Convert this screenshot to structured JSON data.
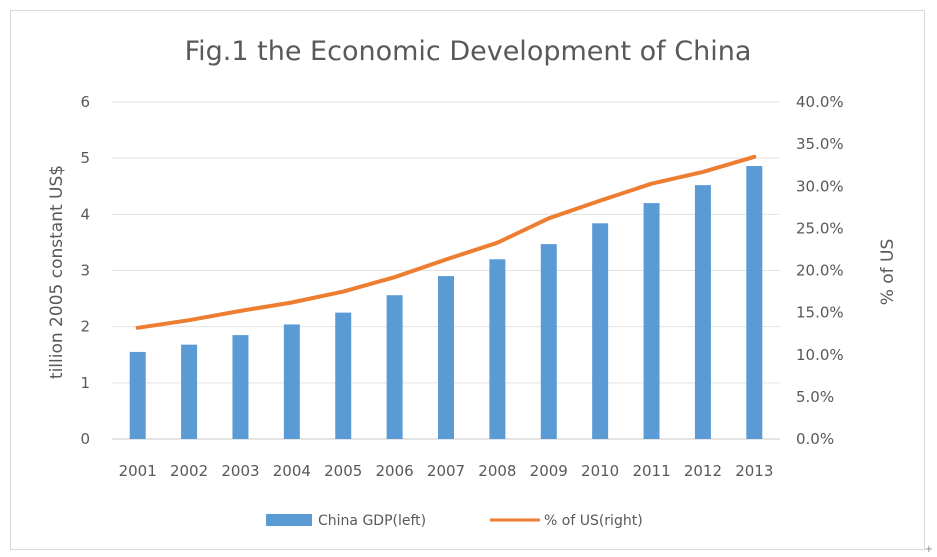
{
  "chart_data": {
    "type": "bar",
    "title": "Fig.1 the Economic Development of China",
    "ylabel_left": "tillion 2005 constant US$",
    "ylabel_right": "% of US",
    "categories": [
      "2001",
      "2002",
      "2003",
      "2004",
      "2005",
      "2006",
      "2007",
      "2008",
      "2009",
      "2010",
      "2011",
      "2012",
      "2013"
    ],
    "series": [
      {
        "name": "China GDP(left)",
        "type": "bar",
        "axis": "left",
        "color": "#5B9BD5",
        "values": [
          1.55,
          1.68,
          1.85,
          2.04,
          2.25,
          2.56,
          2.9,
          3.2,
          3.47,
          3.84,
          4.2,
          4.52,
          4.86
        ]
      },
      {
        "name": "% of US(right)",
        "type": "line",
        "axis": "right",
        "color": "#ED7D31",
        "values": [
          13.2,
          14.1,
          15.2,
          16.2,
          17.5,
          19.2,
          21.3,
          23.3,
          26.2,
          28.3,
          30.3,
          31.7,
          33.5
        ]
      }
    ],
    "ylim_left": [
      0,
      6
    ],
    "yticks_left": [
      "0",
      "1",
      "2",
      "3",
      "4",
      "5",
      "6"
    ],
    "ylim_right": [
      0,
      40
    ],
    "yticks_right": [
      "0.0%",
      "5.0%",
      "10.0%",
      "15.0%",
      "20.0%",
      "25.0%",
      "30.0%",
      "35.0%",
      "40.0%"
    ],
    "grid": true,
    "legend_position": "bottom"
  },
  "corner_mark": "+"
}
